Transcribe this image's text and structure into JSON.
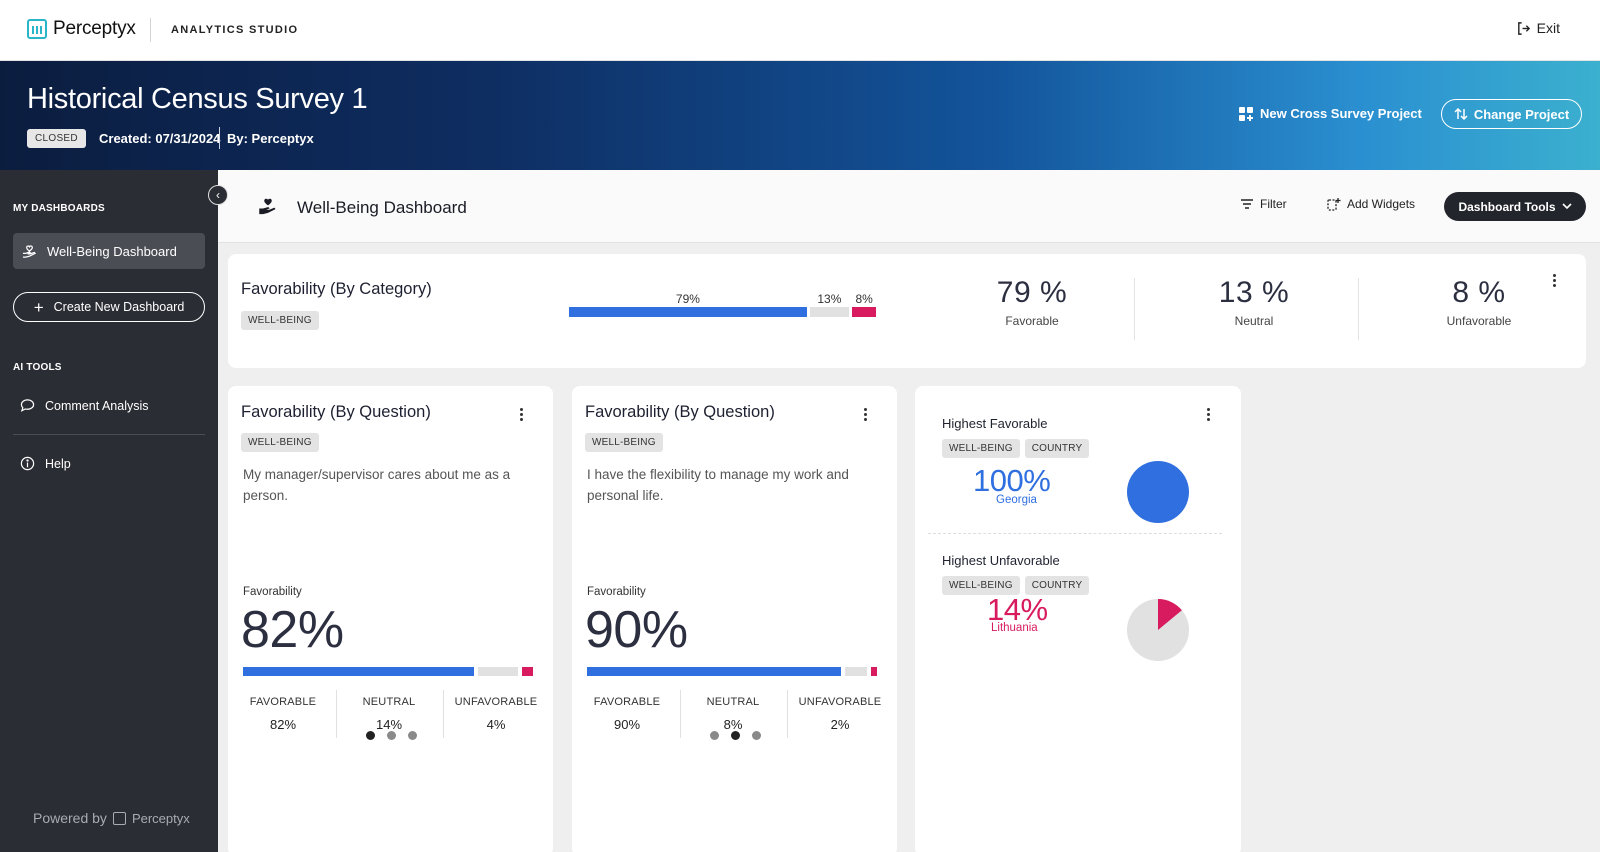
{
  "topbar": {
    "brand": "Perceptyx",
    "studio": "ANALYTICS STUDIO",
    "exit_label": "Exit"
  },
  "hero": {
    "title": "Historical Census Survey 1",
    "status": "CLOSED",
    "created": "Created: 07/31/2024",
    "by": "By: Perceptyx",
    "cross_survey_label": "New Cross Survey Project",
    "change_project_label": "Change Project"
  },
  "sidebar": {
    "my_dashboards_heading": "MY DASHBOARDS",
    "active_item": "Well-Being Dashboard",
    "create_label": "Create New Dashboard",
    "ai_tools_heading": "AI TOOLS",
    "comment_analysis": "Comment Analysis",
    "help": "Help",
    "powered_by": "Powered by",
    "powered_brand": "Perceptyx"
  },
  "dashboard": {
    "title": "Well-Being Dashboard",
    "filter_label": "Filter",
    "add_widgets_label": "Add Widgets",
    "tools_label": "Dashboard Tools"
  },
  "category_card": {
    "title": "Favorability (By Category)",
    "tag": "WELL-BEING",
    "bar": {
      "favorable": 79,
      "neutral": 13,
      "unfavorable": 8
    },
    "bar_labels": {
      "favorable": "79%",
      "neutral": "13%",
      "unfavorable": "8%"
    },
    "stats": [
      {
        "value": "79 %",
        "label": "Favorable"
      },
      {
        "value": "13 %",
        "label": "Neutral"
      },
      {
        "value": "8 %",
        "label": "Unfavorable"
      }
    ]
  },
  "question_cards": [
    {
      "title": "Favorability (By Question)",
      "tag": "WELL-BEING",
      "question": "My manager/supervisor cares about me as a person.",
      "favorability_label": "Favorability",
      "favorability": "82%",
      "bar": {
        "favorable": 82,
        "neutral": 14,
        "unfavorable": 4
      },
      "legend": [
        {
          "label": "FAVORABLE",
          "value": "82%"
        },
        {
          "label": "NEUTRAL",
          "value": "14%"
        },
        {
          "label": "UNFAVORABLE",
          "value": "4%"
        }
      ],
      "active_dot": 0
    },
    {
      "title": "Favorability (By Question)",
      "tag": "WELL-BEING",
      "question": "I have the flexibility to manage my work and personal life.",
      "favorability_label": "Favorability",
      "favorability": "90%",
      "bar": {
        "favorable": 90,
        "neutral": 8,
        "unfavorable": 2
      },
      "legend": [
        {
          "label": "FAVORABLE",
          "value": "90%"
        },
        {
          "label": "NEUTRAL",
          "value": "8%"
        },
        {
          "label": "UNFAVORABLE",
          "value": "2%"
        }
      ],
      "active_dot": 1
    }
  ],
  "highest_card": {
    "favorable": {
      "title": "Highest Favorable",
      "tags": [
        "WELL-BEING",
        "COUNTRY"
      ],
      "value": "100%",
      "name": "Georgia",
      "share": 100
    },
    "unfavorable": {
      "title": "Highest Unfavorable",
      "tags": [
        "WELL-BEING",
        "COUNTRY"
      ],
      "value": "14%",
      "name": "Lithuania",
      "share": 14
    }
  },
  "colors": {
    "favorable": "#2f6fdf",
    "neutral": "#e1e1e1",
    "unfavorable": "#d81b5e",
    "accent_dark": "#23252d"
  }
}
